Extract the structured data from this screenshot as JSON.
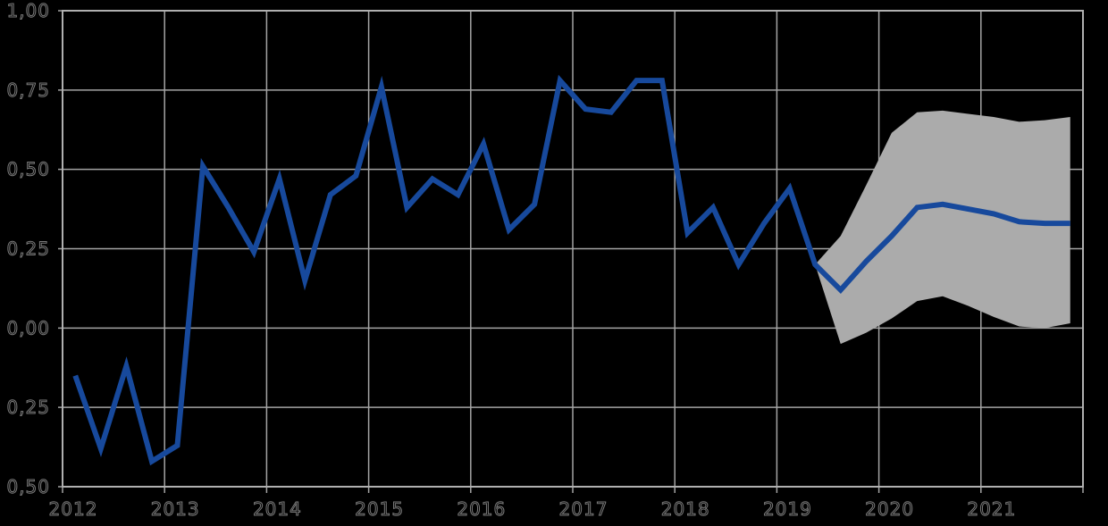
{
  "page": {
    "background_color": "#000000",
    "plot_background": "transparent"
  },
  "chart_data": {
    "type": "line",
    "frequency": "quarterly",
    "grid": true,
    "legend": false,
    "title": "",
    "x_axis": {
      "tick_labels": [
        "2012",
        "2013",
        "2014",
        "2015",
        "2016",
        "2017",
        "2018",
        "2019",
        "2020",
        "2021"
      ],
      "tick_years": [
        2012,
        2013,
        2014,
        2015,
        2016,
        2017,
        2018,
        2019,
        2020,
        2021
      ],
      "range_years": [
        2012,
        2022
      ]
    },
    "y_axis": {
      "tick_labels": [
        "1,00",
        "0,75",
        "0,50",
        "0,25",
        "0,00",
        "0,25",
        "0,50"
      ],
      "tick_values": [
        1.0,
        0.75,
        0.5,
        0.25,
        0.0,
        -0.25,
        -0.5
      ],
      "range": [
        -0.5,
        1.0
      ],
      "decimal_separator": ","
    },
    "series": [
      {
        "name": "history",
        "color": "#17499c",
        "stroke_width": 6,
        "start": "2012-Q1",
        "values": [
          -0.15,
          -0.38,
          -0.12,
          -0.42,
          -0.37,
          0.51,
          0.38,
          0.24,
          0.47,
          0.15,
          0.42,
          0.48,
          0.76,
          0.38,
          0.47,
          0.42,
          0.58,
          0.31,
          0.39,
          0.78,
          0.69,
          0.68,
          0.78,
          0.78,
          0.3,
          0.38,
          0.2,
          0.33,
          0.44,
          0.2
        ]
      },
      {
        "name": "forecast",
        "color": "#17499c",
        "stroke_width": 6,
        "start": "2019-Q3",
        "values": [
          0.12,
          0.21,
          0.29,
          0.38,
          0.39,
          0.375,
          0.36,
          0.335,
          0.33,
          0.33
        ]
      }
    ],
    "confidence_band": {
      "name": "forecast-interval",
      "color": "#ababab",
      "start": "2019-Q2",
      "upper": [
        0.2,
        0.29,
        0.45,
        0.615,
        0.68,
        0.685,
        0.675,
        0.665,
        0.65,
        0.655,
        0.665
      ],
      "lower": [
        0.2,
        -0.05,
        -0.015,
        0.03,
        0.085,
        0.1,
        0.07,
        0.035,
        0.005,
        0.0,
        0.015
      ]
    },
    "style": {
      "grid_color": "#a4a4a4",
      "grid_width": 1.5,
      "border_color": "#b0b0b0",
      "border_width": 2,
      "tick_color": "#a4a4a4",
      "label_outline_color": "#7a7a7a"
    }
  }
}
